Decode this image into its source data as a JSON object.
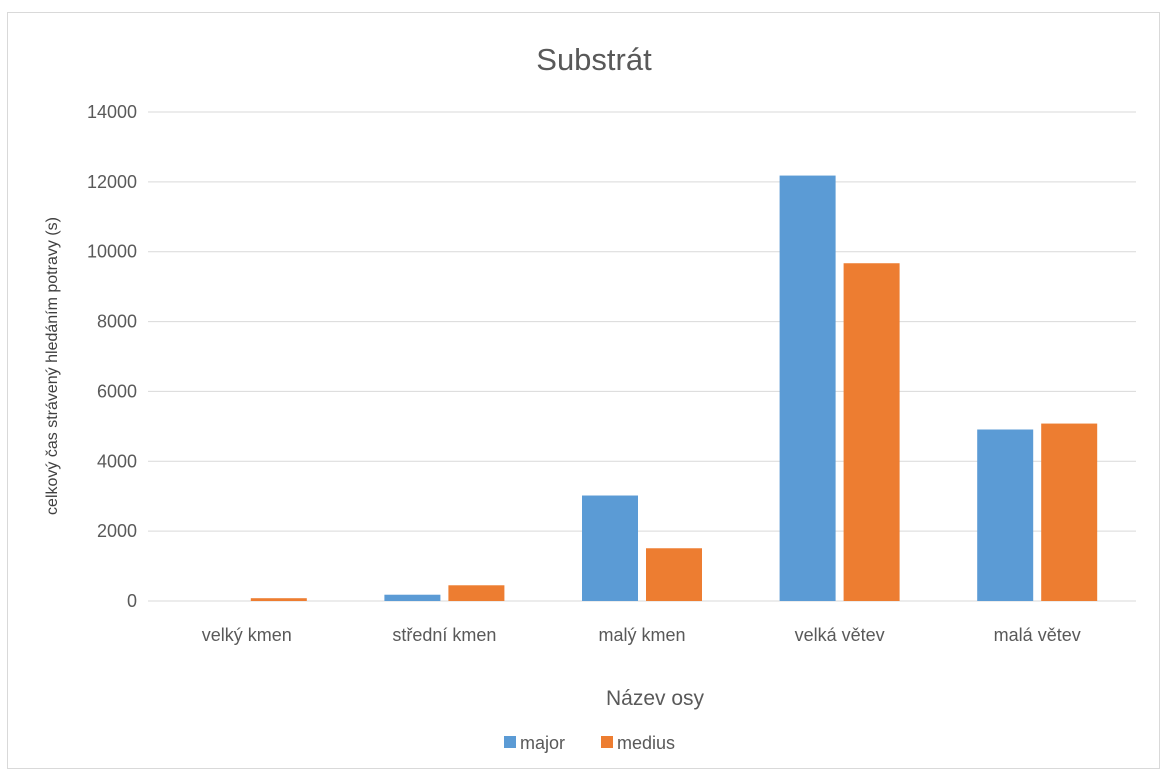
{
  "chart_data": {
    "type": "bar",
    "title": "Substrát",
    "xlabel": "Název osy",
    "ylabel": "celkový čas strávený hledáním potravy (s)",
    "categories": [
      "velký kmen",
      "střední kmen",
      "malý kmen",
      "velká větev",
      "malá větev"
    ],
    "series": [
      {
        "name": "major",
        "values": [
          0,
          180,
          3020,
          12180,
          4910
        ],
        "color": "#5b9bd5"
      },
      {
        "name": "medius",
        "values": [
          80,
          450,
          1510,
          9670,
          5080
        ],
        "color": "#ed7d31"
      }
    ],
    "ylim": [
      0,
      14000
    ],
    "yticks": [
      "0",
      "2000",
      "4000",
      "6000",
      "8000",
      "10000",
      "12000",
      "14000"
    ],
    "grid": true,
    "legend_position": "bottom"
  }
}
